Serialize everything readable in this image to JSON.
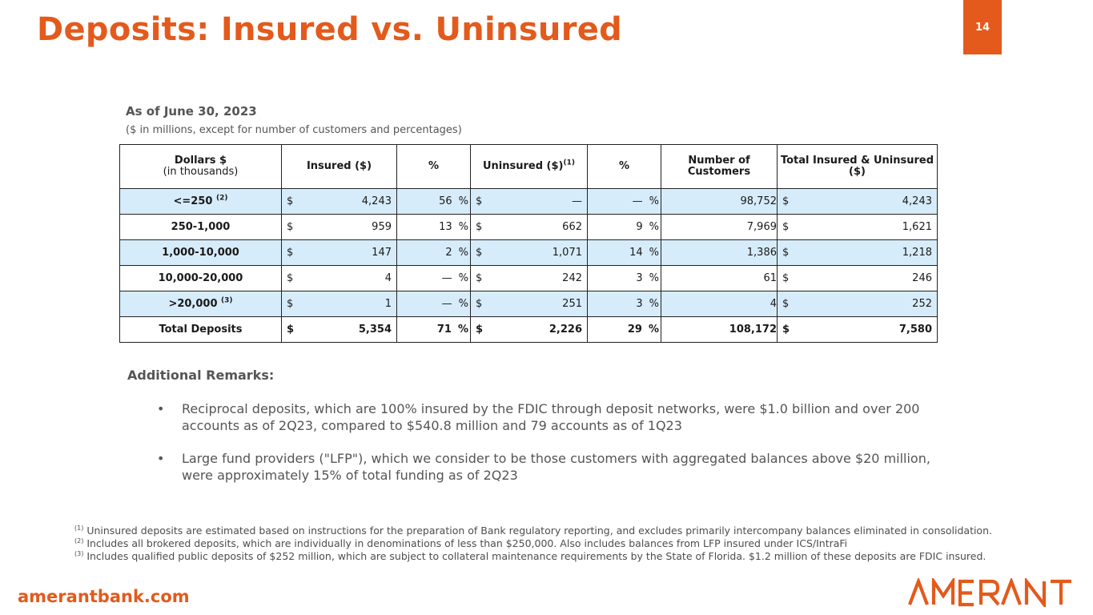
{
  "header": {
    "title": "Deposits: Insured vs. Uninsured",
    "page_number": "14"
  },
  "table_meta": {
    "as_of": "As of June 30, 2023",
    "units_note": "($ in millions, except for number of customers and percentages)"
  },
  "columns": {
    "dollars": "Dollars $",
    "dollars_sub": "(in thousands)",
    "insured": "Insured ($)",
    "pct1": "%",
    "uninsured": "Uninsured  ($)",
    "uninsured_note": "(1)",
    "pct2": "%",
    "customers": "Number  of Customers",
    "total": "Total Insured & Uninsured ($)"
  },
  "rows": [
    {
      "label": "<=250",
      "note": "(2)",
      "insured": "4,243",
      "insured_pct": "56",
      "uninsured": "—",
      "uninsured_pct": "—",
      "customers": "98,752",
      "total": "4,243"
    },
    {
      "label": "250-1,000",
      "note": "",
      "insured": "959",
      "insured_pct": "13",
      "uninsured": "662",
      "uninsured_pct": "9",
      "customers": "7,969",
      "total": "1,621"
    },
    {
      "label": "1,000-10,000",
      "note": "",
      "insured": "147",
      "insured_pct": "2",
      "uninsured": "1,071",
      "uninsured_pct": "14",
      "customers": "1,386",
      "total": "1,218"
    },
    {
      "label": "10,000-20,000",
      "note": "",
      "insured": "4",
      "insured_pct": "—",
      "uninsured": "242",
      "uninsured_pct": "3",
      "customers": "61",
      "total": "246"
    },
    {
      "label": ">20,000",
      "note": "(3)",
      "insured": "1",
      "insured_pct": "—",
      "uninsured": "251",
      "uninsured_pct": "3",
      "customers": "4",
      "total": "252"
    },
    {
      "label": "Total Deposits",
      "note": "",
      "insured": "5,354",
      "insured_pct": "71",
      "uninsured": "2,226",
      "uninsured_pct": "29",
      "customers": "108,172",
      "total": "7,580"
    }
  ],
  "symbols": {
    "currency": "$",
    "percent": "%",
    "bullet": "•"
  },
  "remarks": {
    "title": "Additional Remarks:",
    "items": [
      "Reciprocal deposits, which are 100% insured by the FDIC through deposit networks, were $1.0 billion and over 200 accounts as of 2Q23, compared to $540.8 million and 79 accounts as of 1Q23",
      "Large fund providers (\"LFP\"), which we consider to be those customers with aggregated balances above $20 million, were approximately 15% of total funding as of 2Q23"
    ]
  },
  "footnotes": [
    {
      "marker": "(1)",
      "text": "Uninsured deposits are estimated based on instructions for the preparation of Bank regulatory reporting, and excludes primarily intercompany balances eliminated in consolidation."
    },
    {
      "marker": "(2)",
      "text": "Includes all brokered deposits, which are individually in denominations of less than $250,000. Also includes balances from LFP insured under ICS/IntraFi"
    },
    {
      "marker": "(3)",
      "text": "Includes qualified public deposits of $252 million, which are subject to collateral maintenance requirements by the State of Florida. $1.2 million of these deposits are FDIC insured."
    }
  ],
  "footer": {
    "website": "amerantbank.com",
    "logo_text": "AMERANT"
  },
  "colors": {
    "brand_orange": "#e35a1c",
    "row_shade": "#d7ecfa"
  },
  "icons": {
    "logo": "amerant-logo-icon",
    "bullet": "bullet-dot-icon"
  }
}
